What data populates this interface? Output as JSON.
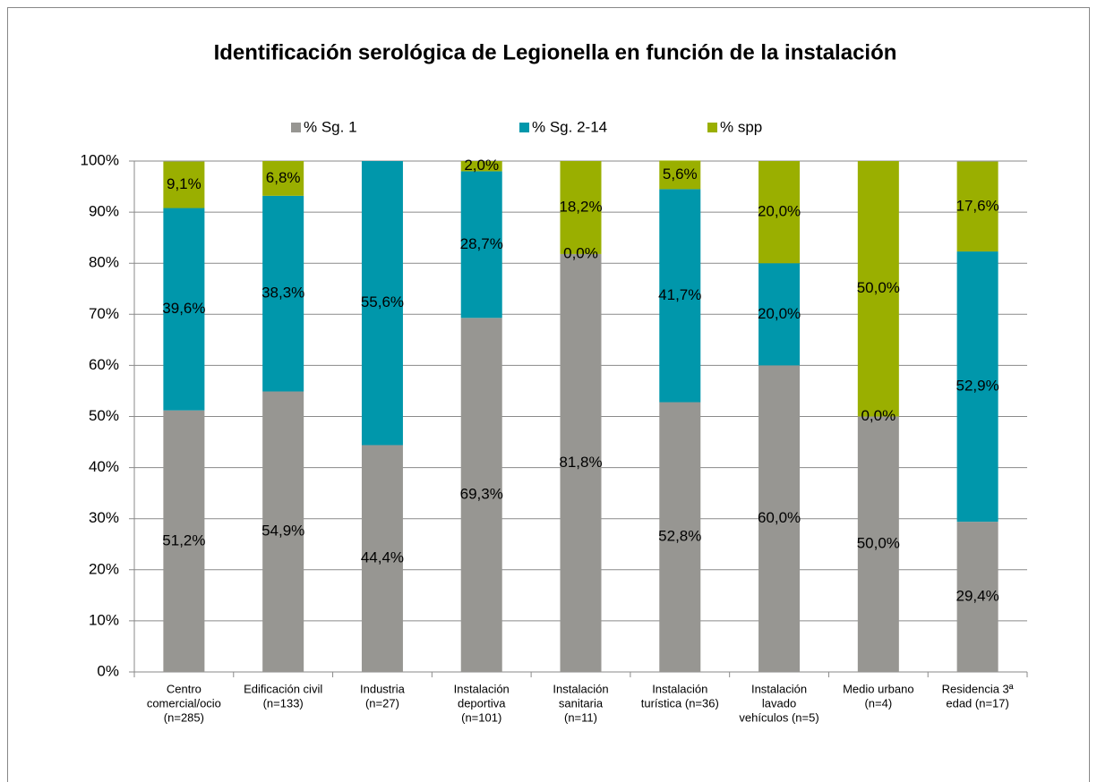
{
  "chart_data": {
    "type": "stacked_bar",
    "title": "Identificación serológica de Legionella en función de la instalación",
    "categories": [
      [
        "Centro",
        "comercial/ocio",
        "(n=285)"
      ],
      [
        "Edificación civil",
        "(n=133)"
      ],
      [
        "Industria",
        "(n=27)"
      ],
      [
        "Instalación",
        "deportiva",
        "(n=101)"
      ],
      [
        "Instalación",
        "sanitaria",
        "(n=11)"
      ],
      [
        "Instalación",
        "turística (n=36)"
      ],
      [
        "Instalación",
        "lavado",
        "vehículos (n=5)"
      ],
      [
        "Medio urbano",
        "(n=4)"
      ],
      [
        "Residencia 3ª",
        "edad (n=17)"
      ]
    ],
    "series": [
      {
        "name": "% Sg. 1",
        "color": "#979692",
        "values": [
          51.2,
          54.9,
          44.4,
          69.3,
          81.8,
          52.8,
          60.0,
          50.0,
          29.4
        ],
        "value_labels": [
          "51,2%",
          "54,9%",
          "44,4%",
          "69,3%",
          "81,8%",
          "52,8%",
          "60,0%",
          "50,0%",
          "29,4%"
        ]
      },
      {
        "name": "% Sg. 2-14",
        "color": "#0097ab",
        "values": [
          39.6,
          38.3,
          55.6,
          28.7,
          0.0,
          41.7,
          20.0,
          0.0,
          52.9
        ],
        "value_labels": [
          "39,6%",
          "38,3%",
          "55,6%",
          "28,7%",
          "0,0%",
          "41,7%",
          "20,0%",
          "0,0%",
          "52,9%"
        ]
      },
      {
        "name": "% spp",
        "color": "#9aaf00",
        "values": [
          9.1,
          6.8,
          0,
          2.0,
          18.2,
          5.6,
          20.0,
          50.0,
          17.6
        ],
        "value_labels": [
          "9,1%",
          "6,8%",
          null,
          "2,0%",
          "18,2%",
          "5,6%",
          "20,0%",
          "50,0%",
          "17,6%"
        ]
      }
    ],
    "ylim": [
      0,
      100
    ],
    "yticks": [
      {
        "value": 0,
        "label": "0%"
      },
      {
        "value": 10,
        "label": "10%"
      },
      {
        "value": 20,
        "label": "20%"
      },
      {
        "value": 30,
        "label": "30%"
      },
      {
        "value": 40,
        "label": "40%"
      },
      {
        "value": 50,
        "label": "50%"
      },
      {
        "value": 60,
        "label": "60%"
      },
      {
        "value": 70,
        "label": "70%"
      },
      {
        "value": 80,
        "label": "80%"
      },
      {
        "value": 90,
        "label": "90%"
      },
      {
        "value": 100,
        "label": "100%"
      }
    ],
    "grid": true,
    "legend": "top"
  }
}
